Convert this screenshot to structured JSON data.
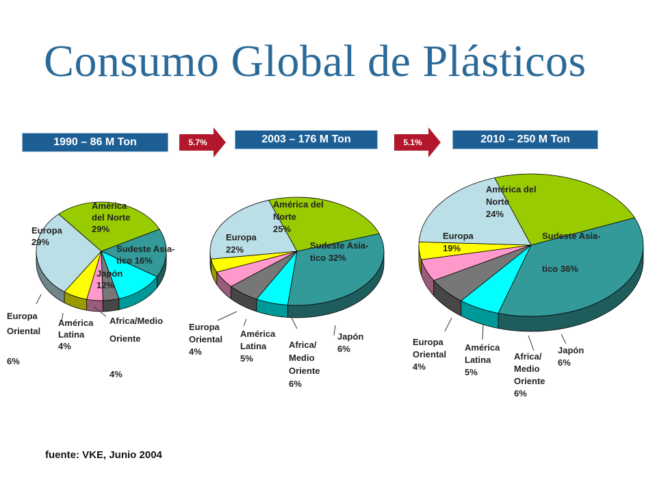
{
  "title": "Consumo Global de Plásticos",
  "headers": [
    "1990 – 86 M Ton",
    "2003 – 176 M Ton",
    "2010 – 250 M Ton"
  ],
  "growth": [
    "5.7%",
    "5.1%"
  ],
  "source": "fuente: VKE, Junio 2004",
  "colors": {
    "title": "#2b6a98",
    "header": "#1d5f95",
    "arrow": "#b2172b",
    "america_norte": "#99cc00",
    "sudeste_asia": "#339999",
    "japon": "#00ffff",
    "africa_medio_oriente": "#777777",
    "america_latina": "#ff99cc",
    "europa_oriental": "#ffff00",
    "europa": "#bbdfe6"
  },
  "chart_data": [
    {
      "type": "pie",
      "title": "1990 – 86 M Ton",
      "slices": [
        {
          "label": "América del Norte",
          "value": 29,
          "text": [
            "América",
            "del Norte",
            "29%"
          ]
        },
        {
          "label": "Sudeste Asia-tico",
          "value": 16,
          "text": [
            "Sudeste Asia-",
            "tico   16%"
          ]
        },
        {
          "label": "Japón",
          "value": 12,
          "text": [
            "Japón",
            "12%"
          ]
        },
        {
          "label": "Africa/Medio Oriente",
          "value": 4,
          "text": [
            "Africa/Medio",
            "Oriente",
            "",
            "4%"
          ]
        },
        {
          "label": "América Latina",
          "value": 4,
          "text": [
            "América",
            "Latina",
            "4%"
          ]
        },
        {
          "label": "Europa Oriental",
          "value": 6,
          "text": [
            "Europa",
            "Oriental",
            "",
            "6%"
          ]
        },
        {
          "label": "Europa",
          "value": 29,
          "text": [
            "Europa",
            "29%"
          ]
        }
      ]
    },
    {
      "type": "pie",
      "title": "2003 – 176 M Ton",
      "slices": [
        {
          "label": "América del Norte",
          "value": 25,
          "text": [
            "América del",
            "Norte",
            "25%"
          ]
        },
        {
          "label": "Sudeste Asia-tico",
          "value": 32,
          "text": [
            "Sudeste Asia-",
            "tico   32%"
          ]
        },
        {
          "label": "Japón",
          "value": 6,
          "text": [
            "Japón",
            "6%"
          ]
        },
        {
          "label": "Africa/Medio Oriente",
          "value": 6,
          "text": [
            "Africa/",
            "Medio",
            "Oriente",
            "6%"
          ]
        },
        {
          "label": "América Latina",
          "value": 5,
          "text": [
            "América",
            "Latina",
            "5%"
          ]
        },
        {
          "label": "Europa Oriental",
          "value": 4,
          "text": [
            "Europa",
            "Oriental",
            "4%"
          ]
        },
        {
          "label": "Europa",
          "value": 22,
          "text": [
            "Europa",
            "22%"
          ]
        }
      ]
    },
    {
      "type": "pie",
      "title": "2010 – 250 M Ton",
      "slices": [
        {
          "label": "América del Norte",
          "value": 24,
          "text": [
            "América del",
            "Norte",
            "24%"
          ]
        },
        {
          "label": "Sudeste Asia-tico",
          "value": 36,
          "text": [
            "Sudeste  Asia-",
            "",
            "tico    36%"
          ]
        },
        {
          "label": "Japón",
          "value": 6,
          "text": [
            "Japón",
            "6%"
          ]
        },
        {
          "label": "Africa/Medio Oriente",
          "value": 6,
          "text": [
            "Africa/",
            "Medio",
            "Oriente",
            "6%"
          ]
        },
        {
          "label": "América Latina",
          "value": 5,
          "text": [
            "América",
            "Latina",
            "5%"
          ]
        },
        {
          "label": "Europa Oriental",
          "value": 4,
          "text": [
            "Europa",
            "Oriental",
            "4%"
          ]
        },
        {
          "label": "Europa",
          "value": 19,
          "text": [
            "Europa",
            "19%"
          ]
        }
      ]
    }
  ]
}
